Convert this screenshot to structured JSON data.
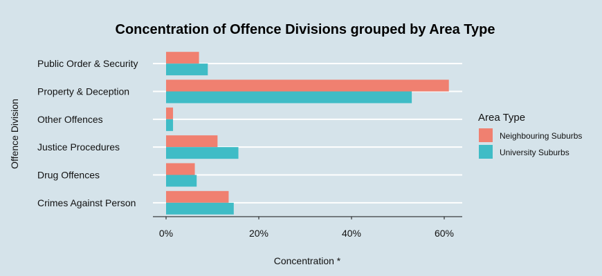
{
  "chart_data": {
    "type": "bar",
    "orientation": "horizontal",
    "title": "Concentration of Offence Divisions grouped by Area Type",
    "xlabel": "Concentration *",
    "ylabel": "Offence Division",
    "categories": [
      "Crimes Against Person",
      "Drug Offences",
      "Justice Procedures",
      "Other Offences",
      "Property & Deception",
      "Public Order & Security"
    ],
    "series": [
      {
        "name": "Neighbouring Suburbs",
        "color": "#f08070",
        "values": [
          13.5,
          6.2,
          11.1,
          1.5,
          61.0,
          7.1
        ]
      },
      {
        "name": "University Suburbs",
        "color": "#3fbcc6",
        "values": [
          14.6,
          6.6,
          15.6,
          1.5,
          53.0,
          9.0
        ]
      }
    ],
    "xlim": [
      0,
      64
    ],
    "xticks": [
      0,
      20,
      40,
      60
    ],
    "xtick_labels": [
      "0%",
      "20%",
      "40%",
      "60%"
    ],
    "grid": "horizontal",
    "legend": {
      "title": "Area Type",
      "position": "right"
    }
  }
}
